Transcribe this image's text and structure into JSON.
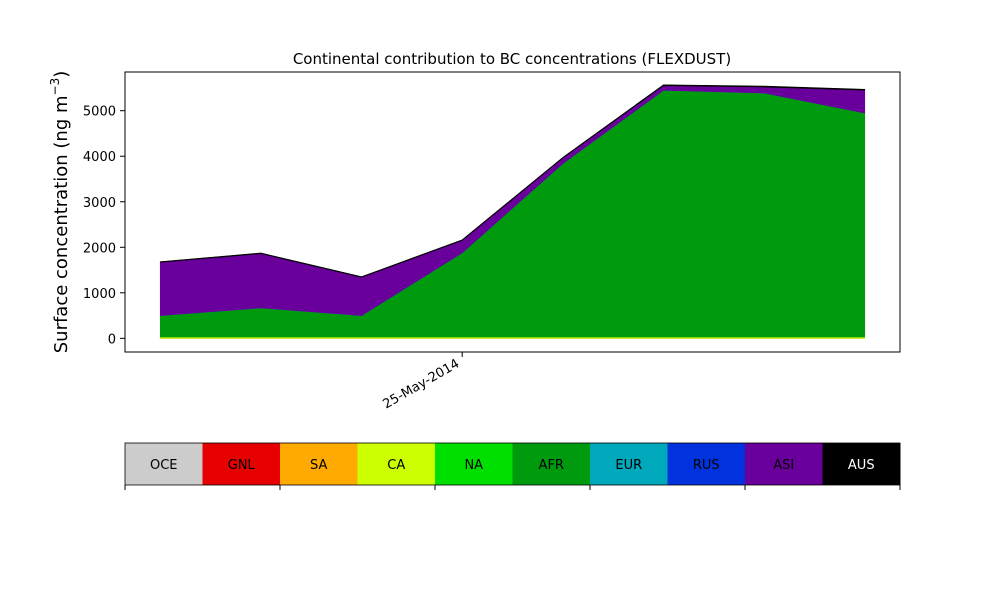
{
  "chart_data": {
    "type": "area",
    "stacked": true,
    "title": "Continental contribution to BC concentrations (FLEXDUST)",
    "ylabel_main": "Surface concentration (ng m",
    "ylabel_exp": "−3",
    "ylabel_close": ")",
    "xlabel": "",
    "x_tick_label": "25-May-2014",
    "x_tick_index": 3,
    "x_points": 8,
    "xlim": [
      -0.35,
      7.35
    ],
    "ylim": [
      -300,
      5850
    ],
    "y_ticks": [
      0,
      1000,
      2000,
      3000,
      4000,
      5000
    ],
    "grid": false,
    "series": [
      {
        "name": "OCE",
        "color": "#cccccc",
        "values": [
          0,
          0,
          0,
          0,
          0,
          0,
          0,
          0
        ]
      },
      {
        "name": "GNL",
        "color": "#e60000",
        "values": [
          0,
          0,
          0,
          0,
          0,
          0,
          0,
          0
        ]
      },
      {
        "name": "SA",
        "color": "#ffaa00",
        "values": [
          0,
          0,
          0,
          0,
          0,
          0,
          0,
          0
        ]
      },
      {
        "name": "CA",
        "color": "#ccff00",
        "values": [
          30,
          30,
          30,
          30,
          30,
          30,
          30,
          30
        ]
      },
      {
        "name": "NA",
        "color": "#00e000",
        "values": [
          0,
          0,
          0,
          0,
          0,
          0,
          0,
          0
        ]
      },
      {
        "name": "AFR",
        "color": "#009a0e",
        "values": [
          470,
          640,
          470,
          1850,
          3810,
          5420,
          5360,
          4920
        ]
      },
      {
        "name": "EUR",
        "color": "#00a8bb",
        "values": [
          0,
          0,
          0,
          0,
          0,
          0,
          0,
          0
        ]
      },
      {
        "name": "RUS",
        "color": "#0033dd",
        "values": [
          0,
          0,
          0,
          0,
          0,
          0,
          0,
          0
        ]
      },
      {
        "name": "ASI",
        "color": "#6a009c",
        "values": [
          1170,
          1190,
          840,
          270,
          120,
          100,
          130,
          500
        ]
      },
      {
        "name": "AUS",
        "color": "#000000",
        "values": [
          15,
          15,
          15,
          15,
          15,
          20,
          20,
          20
        ]
      }
    ]
  }
}
